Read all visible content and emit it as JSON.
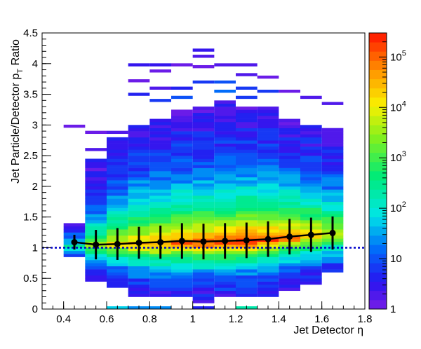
{
  "chart_data": {
    "type": "heatmap",
    "xlabel": "Jet Detector η",
    "ylabel_main": "Jet Particle/Detector p",
    "ylabel_sub": "T",
    "ylabel_tail": " Ratio",
    "xlim": [
      0.3,
      1.8
    ],
    "ylim": [
      0,
      4.5
    ],
    "x_ticks": [
      0.4,
      0.6,
      0.8,
      1,
      1.2,
      1.4,
      1.6,
      1.8
    ],
    "x_tick_labels": [
      "0.4",
      "0.6",
      "0.8",
      "1",
      "1.2",
      "1.4",
      "1.6",
      "1.8"
    ],
    "y_ticks": [
      0,
      0.5,
      1,
      1.5,
      2,
      2.5,
      3,
      3.5,
      4,
      4.5
    ],
    "y_tick_labels": [
      "0",
      "0.5",
      "1",
      "1.5",
      "2",
      "2.5",
      "3",
      "3.5",
      "4",
      "4.5"
    ],
    "colorbar": {
      "scale": "log",
      "range": [
        1,
        300000
      ],
      "ticks": [
        {
          "value": 1,
          "base": "1",
          "exp": ""
        },
        {
          "value": 10,
          "base": "10",
          "exp": ""
        },
        {
          "value": 100,
          "base": "10",
          "exp": "2"
        },
        {
          "value": 1000,
          "base": "10",
          "exp": "3"
        },
        {
          "value": 10000,
          "base": "10",
          "exp": "4"
        },
        {
          "value": 100000,
          "base": "10",
          "exp": "5"
        }
      ]
    },
    "x_bins": [
      0.4,
      0.5,
      0.6,
      0.7,
      0.8,
      0.9,
      1.0,
      1.1,
      1.2,
      1.3,
      1.4,
      1.5,
      1.6,
      1.7
    ],
    "y_bin_width": 0.05,
    "column_profiles": [
      {
        "x0": 0.4,
        "x1": 0.5,
        "peak": 1.0,
        "sigma": 0.12,
        "ymin": 0.85,
        "ymax": 1.4,
        "log_peak": 2.6,
        "outliers": [
          [
            2.98,
            0.0
          ]
        ]
      },
      {
        "x0": 0.5,
        "x1": 0.6,
        "peak": 1.02,
        "sigma": 0.3,
        "ymin": 0.45,
        "ymax": 2.45,
        "log_peak": 3.7,
        "outliers": [
          [
            2.88,
            0.0
          ],
          [
            2.6,
            0.3
          ]
        ]
      },
      {
        "x0": 0.6,
        "x1": 0.7,
        "peak": 1.05,
        "sigma": 0.38,
        "ymin": 0.35,
        "ymax": 2.8,
        "log_peak": 4.2,
        "outliers": [
          [
            0.02,
            1.8
          ],
          [
            2.88,
            0.2
          ]
        ]
      },
      {
        "x0": 0.7,
        "x1": 0.8,
        "peak": 1.05,
        "sigma": 0.42,
        "ymin": 0.2,
        "ymax": 3.0,
        "log_peak": 4.6,
        "outliers": [
          [
            3.98,
            0.4
          ],
          [
            3.72,
            0.0
          ],
          [
            3.5,
            0.6
          ],
          [
            0.02,
            1.4
          ]
        ]
      },
      {
        "x0": 0.8,
        "x1": 0.9,
        "peak": 1.05,
        "sigma": 0.45,
        "ymin": 0.2,
        "ymax": 3.1,
        "log_peak": 4.8,
        "outliers": [
          [
            3.98,
            0.5
          ],
          [
            3.88,
            0.0
          ],
          [
            3.6,
            0.3
          ],
          [
            3.4,
            0.8
          ],
          [
            0.02,
            1.4
          ]
        ]
      },
      {
        "x0": 0.9,
        "x1": 1.0,
        "peak": 1.07,
        "sigma": 0.45,
        "ymin": 0.2,
        "ymax": 3.25,
        "log_peak": 5.0,
        "outliers": [
          [
            3.98,
            0.0
          ],
          [
            3.6,
            0.6
          ],
          [
            3.45,
            1.0
          ]
        ]
      },
      {
        "x0": 1.0,
        "x1": 1.1,
        "peak": 1.08,
        "sigma": 0.45,
        "ymin": 0.1,
        "ymax": 3.3,
        "log_peak": 5.2,
        "outliers": [
          [
            4.22,
            0.5
          ],
          [
            4.12,
            0.3
          ],
          [
            3.95,
            0.0
          ],
          [
            3.7,
            0.9
          ],
          [
            0.02,
            0.7
          ],
          [
            0.12,
            0.3
          ]
        ]
      },
      {
        "x0": 1.1,
        "x1": 1.2,
        "peak": 1.08,
        "sigma": 0.45,
        "ymin": 0.2,
        "ymax": 3.4,
        "log_peak": 5.3,
        "outliers": [
          [
            3.98,
            0.3
          ],
          [
            3.7,
            1.0
          ],
          [
            3.55,
            1.1
          ]
        ]
      },
      {
        "x0": 1.2,
        "x1": 1.3,
        "peak": 1.1,
        "sigma": 0.45,
        "ymin": 0.2,
        "ymax": 3.3,
        "log_peak": 5.4,
        "outliers": [
          [
            3.98,
            0.2
          ],
          [
            3.82,
            0.3
          ],
          [
            3.6,
            0.8
          ],
          [
            3.45,
            0.9
          ],
          [
            0.02,
            2.3
          ]
        ]
      },
      {
        "x0": 1.3,
        "x1": 1.4,
        "peak": 1.12,
        "sigma": 0.45,
        "ymin": 0.2,
        "ymax": 3.3,
        "log_peak": 5.2,
        "outliers": [
          [
            3.78,
            0.0
          ],
          [
            3.55,
            0.9
          ]
        ]
      },
      {
        "x0": 1.4,
        "x1": 1.5,
        "peak": 1.15,
        "sigma": 0.42,
        "ymin": 0.3,
        "ymax": 3.1,
        "log_peak": 4.9,
        "outliers": [
          [
            3.55,
            0.1
          ]
        ]
      },
      {
        "x0": 1.5,
        "x1": 1.6,
        "peak": 1.18,
        "sigma": 0.4,
        "ymin": 0.4,
        "ymax": 3.0,
        "log_peak": 4.6,
        "outliers": [
          [
            3.45,
            0.2
          ]
        ]
      },
      {
        "x0": 1.6,
        "x1": 1.7,
        "peak": 1.2,
        "sigma": 0.38,
        "ymin": 0.6,
        "ymax": 2.95,
        "log_peak": 4.0,
        "outliers": [
          [
            3.35,
            0.3
          ]
        ]
      }
    ],
    "profile": {
      "x": [
        0.45,
        0.55,
        0.65,
        0.75,
        0.85,
        0.95,
        1.05,
        1.15,
        1.25,
        1.35,
        1.45,
        1.55,
        1.65
      ],
      "y": [
        1.09,
        1.05,
        1.06,
        1.08,
        1.09,
        1.11,
        1.1,
        1.11,
        1.12,
        1.14,
        1.18,
        1.21,
        1.24
      ],
      "yerr": [
        0.12,
        0.24,
        0.26,
        0.26,
        0.27,
        0.29,
        0.29,
        0.29,
        0.29,
        0.29,
        0.29,
        0.28,
        0.27
      ],
      "color": "#000000"
    },
    "reference_line": {
      "y": 1.0,
      "style": "dotted",
      "color": "#0000cc"
    },
    "grid": false,
    "legend": "none"
  }
}
